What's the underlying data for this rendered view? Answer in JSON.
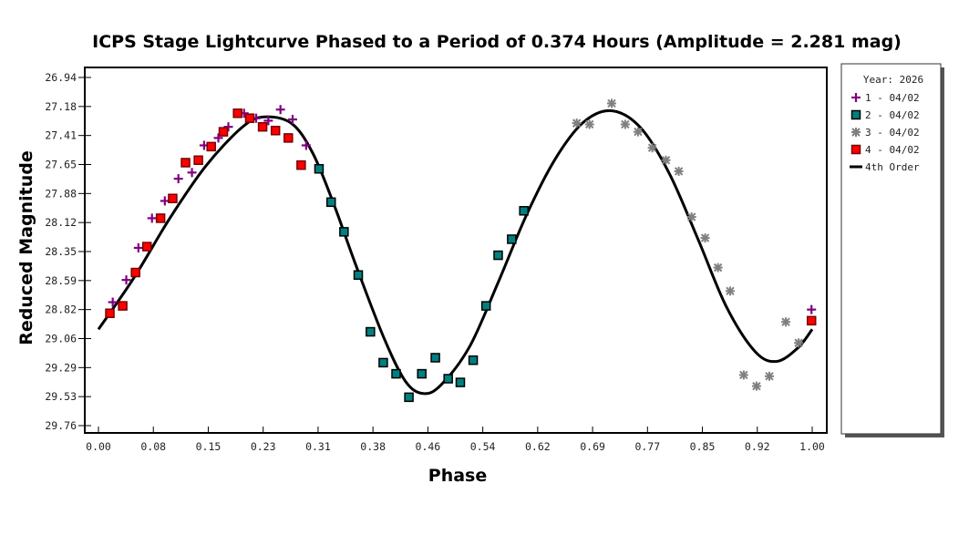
{
  "chart_data": {
    "type": "scatter",
    "title": "ICPS Stage Lightcurve Phased to a Period of 0.374 Hours (Amplitude = 2.281 mag)",
    "xlabel": "Phase",
    "ylabel": "Reduced Magnitude",
    "xlim": [
      0,
      1
    ],
    "ylim": [
      26.94,
      29.76
    ],
    "y_inverted": true,
    "grid": false,
    "legend_placement": "right",
    "x_ticks": [
      "0.00",
      "0.08",
      "0.15",
      "0.23",
      "0.31",
      "0.38",
      "0.46",
      "0.54",
      "0.62",
      "0.69",
      "0.77",
      "0.85",
      "0.92",
      "1.00"
    ],
    "y_ticks": [
      "26.94",
      "27.18",
      "27.41",
      "27.65",
      "27.88",
      "28.12",
      "28.35",
      "28.59",
      "28.82",
      "29.06",
      "29.29",
      "29.53",
      "29.76"
    ],
    "legend": {
      "title": "Year: 2026",
      "entries": [
        "1 - 04/02",
        "2 - 04/02",
        "3 - 04/02",
        "4 - 04/02",
        "4th Order"
      ]
    },
    "series": [
      {
        "name": "1 - 04/02",
        "marker": "plus",
        "color": "#800080",
        "points": [
          [
            0.02,
            28.76
          ],
          [
            0.039,
            28.58
          ],
          [
            0.056,
            28.32
          ],
          [
            0.075,
            28.08
          ],
          [
            0.093,
            27.94
          ],
          [
            0.112,
            27.76
          ],
          [
            0.131,
            27.71
          ],
          [
            0.148,
            27.49
          ],
          [
            0.168,
            27.43
          ],
          [
            0.182,
            27.34
          ],
          [
            0.204,
            27.23
          ],
          [
            0.221,
            27.27
          ],
          [
            0.238,
            27.29
          ],
          [
            0.255,
            27.2
          ],
          [
            0.272,
            27.28
          ],
          [
            0.291,
            27.49
          ],
          [
            0.999,
            28.82
          ]
        ]
      },
      {
        "name": "2 - 04/02",
        "marker": "square",
        "color": "#008080",
        "points": [
          [
            0.309,
            27.68
          ],
          [
            0.326,
            27.95
          ],
          [
            0.344,
            28.19
          ],
          [
            0.364,
            28.54
          ],
          [
            0.381,
            29.0
          ],
          [
            0.399,
            29.25
          ],
          [
            0.417,
            29.34
          ],
          [
            0.435,
            29.53
          ],
          [
            0.453,
            29.34
          ],
          [
            0.472,
            29.21
          ],
          [
            0.49,
            29.38
          ],
          [
            0.507,
            29.41
          ],
          [
            0.525,
            29.23
          ],
          [
            0.543,
            28.79
          ],
          [
            0.56,
            28.38
          ],
          [
            0.579,
            28.25
          ],
          [
            0.596,
            28.02
          ]
        ]
      },
      {
        "name": "3 - 04/02",
        "marker": "asterisk",
        "color": "#808080",
        "points": [
          [
            0.67,
            27.31
          ],
          [
            0.688,
            27.32
          ],
          [
            0.719,
            27.15
          ],
          [
            0.738,
            27.32
          ],
          [
            0.756,
            27.38
          ],
          [
            0.776,
            27.51
          ],
          [
            0.795,
            27.61
          ],
          [
            0.813,
            27.7
          ],
          [
            0.831,
            28.07
          ],
          [
            0.85,
            28.24
          ],
          [
            0.868,
            28.48
          ],
          [
            0.885,
            28.67
          ],
          [
            0.904,
            29.35
          ],
          [
            0.922,
            29.44
          ],
          [
            0.94,
            29.36
          ],
          [
            0.963,
            28.92
          ],
          [
            0.981,
            29.09
          ]
        ]
      },
      {
        "name": "4 - 04/02",
        "marker": "square",
        "color": "#ff0000",
        "points": [
          [
            0.016,
            28.85
          ],
          [
            0.034,
            28.79
          ],
          [
            0.052,
            28.52
          ],
          [
            0.068,
            28.31
          ],
          [
            0.087,
            28.08
          ],
          [
            0.104,
            27.92
          ],
          [
            0.122,
            27.63
          ],
          [
            0.14,
            27.61
          ],
          [
            0.158,
            27.5
          ],
          [
            0.175,
            27.38
          ],
          [
            0.195,
            27.23
          ],
          [
            0.212,
            27.27
          ],
          [
            0.23,
            27.34
          ],
          [
            0.248,
            27.37
          ],
          [
            0.266,
            27.43
          ],
          [
            0.284,
            27.65
          ],
          [
            0.999,
            28.91
          ]
        ]
      },
      {
        "name": "4th Order",
        "type": "line",
        "color": "#000000",
        "points": [
          [
            0,
            28.98
          ],
          [
            0.05,
            28.56
          ],
          [
            0.1,
            28.08
          ],
          [
            0.15,
            27.66
          ],
          [
            0.2,
            27.35
          ],
          [
            0.23,
            27.26
          ],
          [
            0.27,
            27.31
          ],
          [
            0.3,
            27.55
          ],
          [
            0.33,
            27.97
          ],
          [
            0.36,
            28.45
          ],
          [
            0.4,
            29.05
          ],
          [
            0.43,
            29.4
          ],
          [
            0.455,
            29.5
          ],
          [
            0.48,
            29.43
          ],
          [
            0.52,
            29.12
          ],
          [
            0.56,
            28.6
          ],
          [
            0.6,
            28.05
          ],
          [
            0.64,
            27.6
          ],
          [
            0.68,
            27.3
          ],
          [
            0.72,
            27.21
          ],
          [
            0.76,
            27.35
          ],
          [
            0.8,
            27.72
          ],
          [
            0.84,
            28.25
          ],
          [
            0.88,
            28.8
          ],
          [
            0.92,
            29.16
          ],
          [
            0.95,
            29.24
          ],
          [
            0.98,
            29.13
          ],
          [
            1.0,
            28.98
          ]
        ]
      }
    ]
  }
}
